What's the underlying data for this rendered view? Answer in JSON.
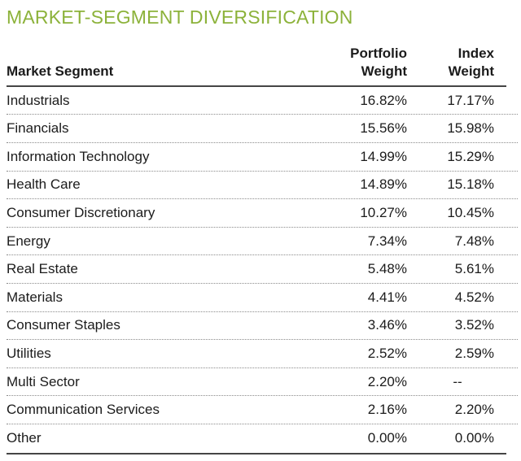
{
  "title": "MARKET-SEGMENT DIVERSIFICATION",
  "colors": {
    "accent_green": "#8cb23a",
    "text": "#1b1b1b",
    "solid_rule": "#454545",
    "dotted_rule": "#8b8b8b"
  },
  "table": {
    "headers": {
      "segment": "Market Segment",
      "portfolio": "Portfolio\nWeight",
      "index": "Index\nWeight"
    },
    "rows": [
      {
        "segment": "Industrials",
        "portfolio": "16.82%",
        "index": "17.17%"
      },
      {
        "segment": "Financials",
        "portfolio": "15.56%",
        "index": "15.98%"
      },
      {
        "segment": "Information Technology",
        "portfolio": "14.99%",
        "index": "15.29%"
      },
      {
        "segment": "Health Care",
        "portfolio": "14.89%",
        "index": "15.18%"
      },
      {
        "segment": "Consumer Discretionary",
        "portfolio": "10.27%",
        "index": "10.45%"
      },
      {
        "segment": "Energy",
        "portfolio": "7.34%",
        "index": "7.48%"
      },
      {
        "segment": "Real Estate",
        "portfolio": "5.48%",
        "index": "5.61%"
      },
      {
        "segment": "Materials",
        "portfolio": "4.41%",
        "index": "4.52%"
      },
      {
        "segment": "Consumer Staples",
        "portfolio": "3.46%",
        "index": "3.52%"
      },
      {
        "segment": "Utilities",
        "portfolio": "2.52%",
        "index": "2.59%"
      },
      {
        "segment": "Multi Sector",
        "portfolio": "2.20%",
        "index": "--"
      },
      {
        "segment": "Communication Services",
        "portfolio": "2.16%",
        "index": "2.20%"
      },
      {
        "segment": "Other",
        "portfolio": "0.00%",
        "index": "0.00%"
      }
    ]
  }
}
